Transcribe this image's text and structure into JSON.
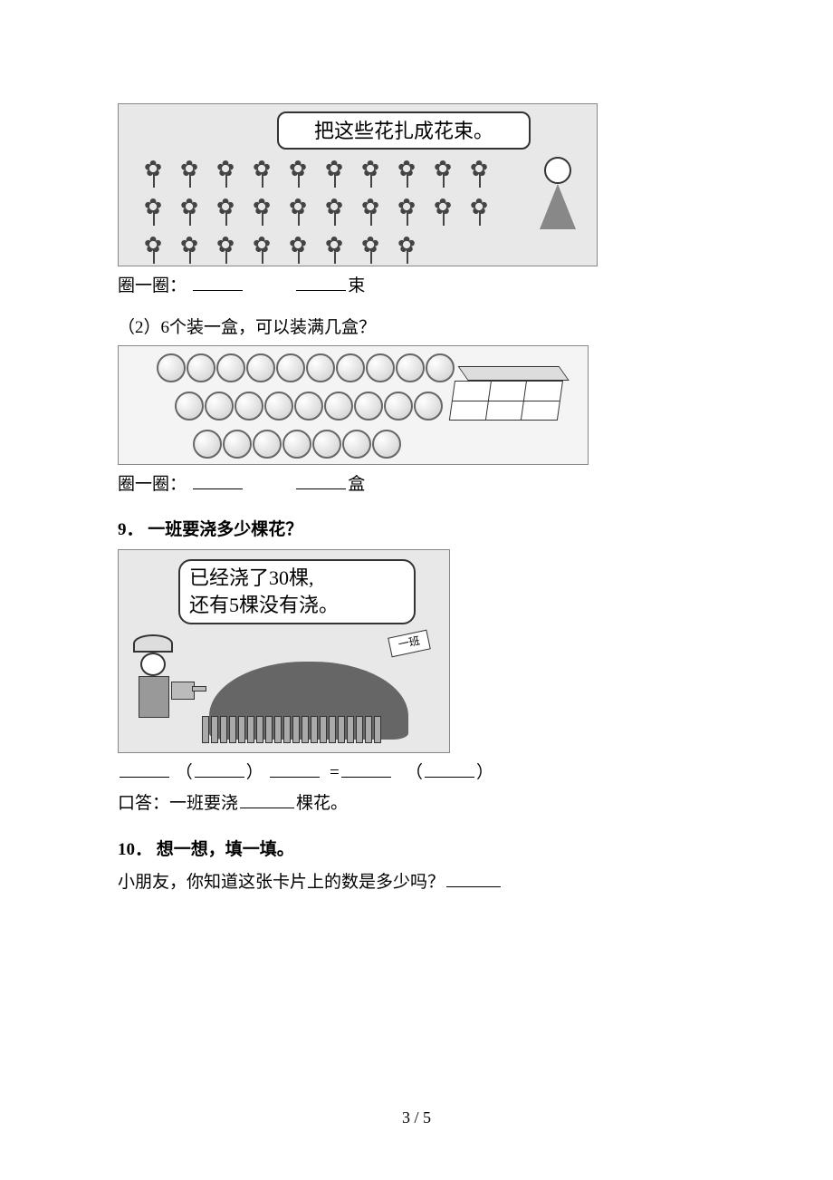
{
  "q8": {
    "bubble": "把这些花扎成花束。",
    "flowers_rows": [
      10,
      10,
      8
    ],
    "answer_label": "圈一圈：",
    "unit": "束",
    "sub2": "（2）6个装一盒，可以装满几盒？",
    "balls_rows": [
      10,
      9,
      7
    ],
    "answer_label2": "圈一圈：",
    "unit2": "盒"
  },
  "q9": {
    "number": "9．",
    "title": "一班要浇多少棵花？",
    "bubble_line1": "已经浇了30棵,",
    "bubble_line2": "还有5棵没有浇。",
    "sign": "一班",
    "eq_open": "（",
    "eq_close": "）",
    "eq_eq": "=",
    "oral_prefix": "口答：一班要浇",
    "oral_suffix": "棵花。"
  },
  "q10": {
    "number": "10．",
    "title": "想一想，填一填。",
    "text": "小朋友，你知道这张卡片上的数是多少吗？"
  },
  "page": {
    "current": "3",
    "sep": " / ",
    "total": "5"
  }
}
